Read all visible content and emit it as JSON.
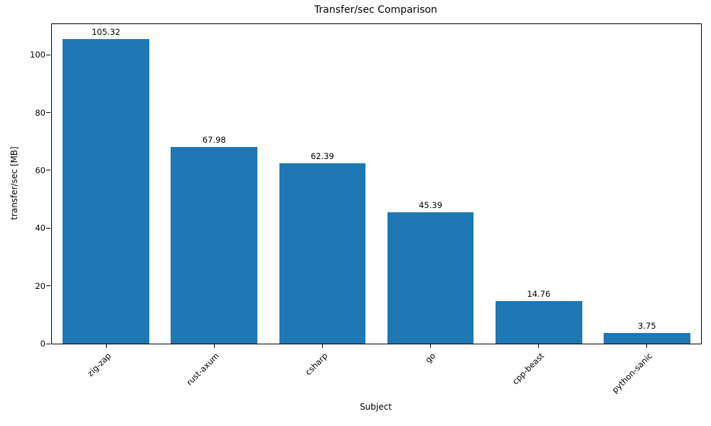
{
  "chart_data": {
    "type": "bar",
    "title": "Transfer/sec Comparison",
    "xlabel": "Subject",
    "ylabel": "transfer/sec [MB]",
    "categories": [
      "zig-zap",
      "rust-axum",
      "csharp",
      "go",
      "cpp-beast",
      "python-sanic"
    ],
    "values": [
      105.32,
      67.98,
      62.39,
      45.39,
      14.76,
      3.75
    ],
    "value_labels": [
      "105.32",
      "67.98",
      "62.39",
      "45.39",
      "14.76",
      "3.75"
    ],
    "ylim": [
      0,
      110.6
    ],
    "yticks": [
      0,
      20,
      40,
      60,
      80,
      100
    ],
    "bar_color": "#1f77b4",
    "bar_width_fraction": 0.8,
    "grid": false,
    "legend": false
  }
}
